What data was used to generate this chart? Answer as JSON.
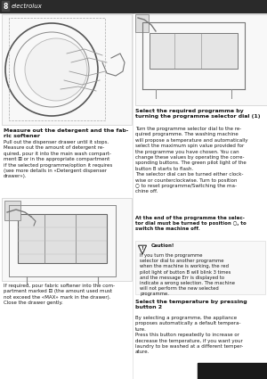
{
  "page_number": "8",
  "brand": "electrolux",
  "bg_color": "#ffffff",
  "text_color": "#1a1a1a",
  "header_color": "#f0f0f0",
  "left_column": {
    "heading": "Measure out the detergent and the fab-\nric softener",
    "body1": "Pull out the dispenser drawer until it stops.\nMeasure out the amount of detergent re-\nquired, pour it into the main wash compart-\nment ⊞ or in the appropriate compartment\nif the selected programme/option it requires\n(see more details in «Detergent dispenser\ndrawer»).",
    "body2": "If required, pour fabric softener into the com-\npartment marked ⊟ (the amount used must\nnot exceed the «MAX» mark in the drawer).\nClose the drawer gently."
  },
  "right_column": {
    "heading1": "Select the required programme by\nturning the programme selector dial (1)",
    "body1": "Turn the programme selector dial to the re-\nquired programme. The washing machine\nwill propose a temperature and automatically\nselect the maximum spin value provided for\nthe programme you have chosen. You can\nchange these values by operating the corre-\nsponding buttons. The green pilot light of the\nbutton B starts to flash.\nThe selector dial can be turned either clock-\nwise or counterclockwise. Turn to position\n○ to reset programme/Switching the ma-\nchine off.",
    "bold_para": "At the end of the programme the selec-\ntor dial must be turned to position ○, to\nswitch the machine off.",
    "caution_title": "Caution!",
    "caution_body": "If you turn the programme\nselector dial to another programme\nwhen the machine is working, the red\npilot light of button B will blink 3 times\nand the message Err is displayed to\nindicate a wrong selection. The machine\nwill not perform the new selected\nprogramme.",
    "heading2": "Select the temperature by pressing\nbutton 2",
    "body2": "By selecting a programme, the appliance\nproposes automatically a default tempera-\nture.\nPress this button repeatedly to increase or\ndecrease the temperature, if you want your\nlaundry to be washed at a different temper-\nature."
  }
}
